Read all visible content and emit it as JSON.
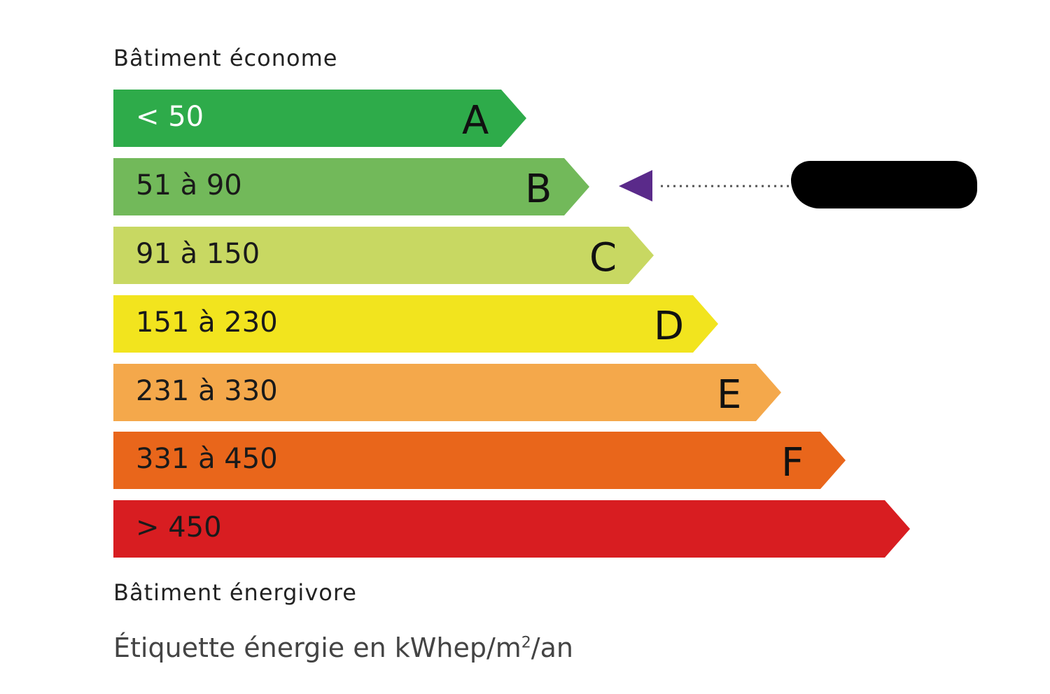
{
  "header": {
    "top_label": "Bâtiment économe",
    "bottom_label": "Bâtiment énergivore"
  },
  "classes": [
    {
      "range": "< 50",
      "letter": "A",
      "color": "#2eab4a"
    },
    {
      "range": "51 à 90",
      "letter": "B",
      "color": "#72b95a"
    },
    {
      "range": "91 à 150",
      "letter": "C",
      "color": "#c8d862"
    },
    {
      "range": "151 à 230",
      "letter": "D",
      "color": "#f2e41e"
    },
    {
      "range": "231 à 330",
      "letter": "E",
      "color": "#f4a84b"
    },
    {
      "range": "331 à 450",
      "letter": "F",
      "color": "#e9661b"
    },
    {
      "range": "> 450",
      "letter": "",
      "color": "#d81d21"
    }
  ],
  "indicator": {
    "class": "B",
    "color": "#5a2a8a",
    "icon": "triangle-left-icon",
    "value_redacted": true
  },
  "footer": {
    "unit_label_prefix": "Étiquette énergie en kWhep/m",
    "unit_sup": "2",
    "unit_label_suffix": "/an"
  }
}
